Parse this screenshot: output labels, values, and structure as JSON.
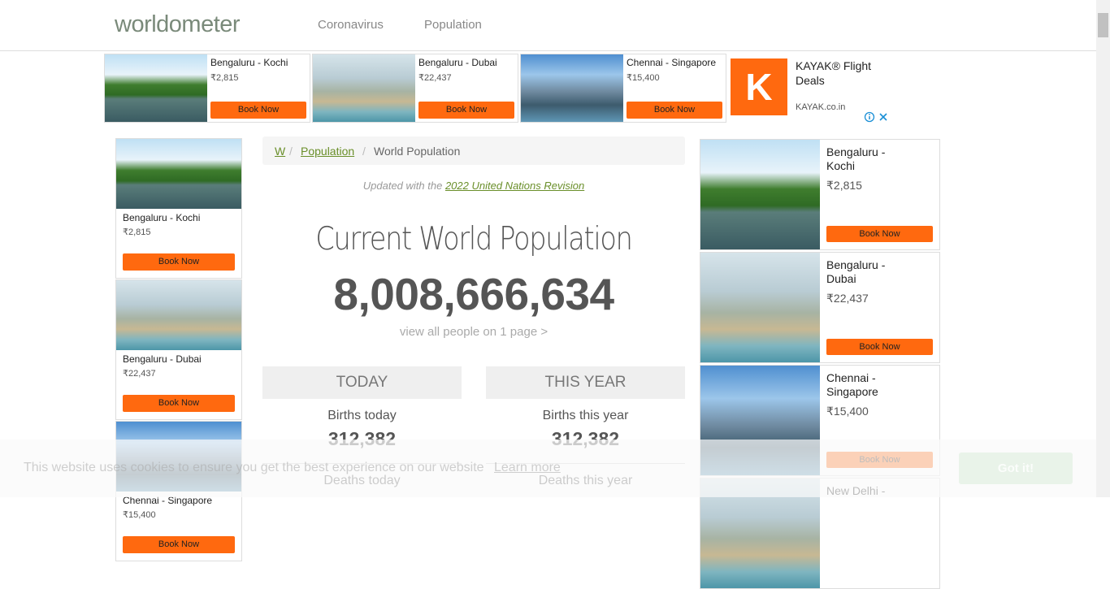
{
  "header": {
    "logo": "worldometer",
    "nav": [
      "Coronavirus",
      "Population"
    ]
  },
  "top_ads": [
    {
      "route": "Bengaluru - Kochi",
      "price": "₹2,815",
      "button": "Book Now"
    },
    {
      "route": "Bengaluru - Dubai",
      "price": "₹22,437",
      "button": "Book Now"
    },
    {
      "route": "Chennai - Singapore",
      "price": "₹15,400",
      "button": "Book Now"
    }
  ],
  "kayak": {
    "letter": "K",
    "title": "KAYAK® Flight Deals",
    "domain": "KAYAK.co.in"
  },
  "breadcrumb": [
    "W",
    "Population",
    "World Population"
  ],
  "updated": {
    "prefix": "Updated with the",
    "link": "2022 United Nations Revision"
  },
  "heading": "Current World Population",
  "counter": "8,008,666,634",
  "view_all": "view all people on 1 page >",
  "panels": [
    {
      "title": "TODAY",
      "births_label": "Births today",
      "births_value": "312,382",
      "deaths_label": "Deaths today"
    },
    {
      "title": "THIS YEAR",
      "births_label": "Births this year",
      "births_value": "312,382",
      "deaths_label": "Deaths this year"
    }
  ],
  "left_ads": [
    {
      "route": "Bengaluru - Kochi",
      "price": "₹2,815",
      "button": "Book Now"
    },
    {
      "route": "Bengaluru - Dubai",
      "price": "₹22,437",
      "button": "Book Now"
    },
    {
      "route": "Chennai - Singapore",
      "price": "₹15,400",
      "button": "Book Now"
    }
  ],
  "right_ads": [
    {
      "route": "Bengaluru - Kochi",
      "price": "₹2,815",
      "button": "Book Now"
    },
    {
      "route": "Bengaluru - Dubai",
      "price": "₹22,437",
      "button": "Book Now"
    },
    {
      "route": "Chennai - Singapore",
      "price": "₹15,400",
      "button": "Book Now"
    },
    {
      "route": "New Delhi -",
      "price": "",
      "button": ""
    }
  ],
  "cookie": {
    "text": "This website uses cookies to ensure you get the best experience on our website",
    "link": "Learn more",
    "button": "Got it!"
  }
}
